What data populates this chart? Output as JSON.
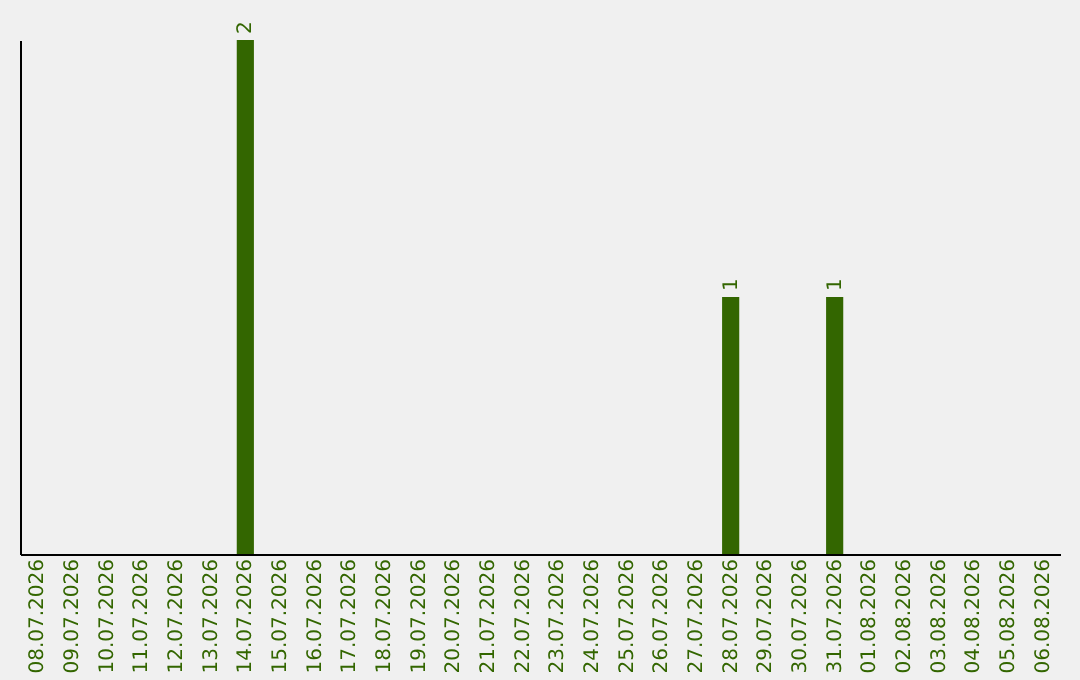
{
  "chart_data": {
    "type": "bar",
    "categories": [
      "08.07.2026",
      "09.07.2026",
      "10.07.2026",
      "11.07.2026",
      "12.07.2026",
      "13.07.2026",
      "14.07.2026",
      "15.07.2026",
      "16.07.2026",
      "17.07.2026",
      "18.07.2026",
      "19.07.2026",
      "20.07.2026",
      "21.07.2026",
      "22.07.2026",
      "23.07.2026",
      "24.07.2026",
      "25.07.2026",
      "26.07.2026",
      "27.07.2026",
      "28.07.2026",
      "29.07.2026",
      "30.07.2026",
      "31.07.2026",
      "01.08.2026",
      "02.08.2026",
      "03.08.2026",
      "04.08.2026",
      "05.08.2026",
      "06.08.2026"
    ],
    "values": [
      0,
      0,
      0,
      0,
      0,
      0,
      2,
      0,
      0,
      0,
      0,
      0,
      0,
      0,
      0,
      0,
      0,
      0,
      0,
      0,
      1,
      0,
      0,
      1,
      0,
      0,
      0,
      0,
      0,
      0
    ],
    "value_labels": [
      null,
      null,
      null,
      null,
      null,
      null,
      "2",
      null,
      null,
      null,
      null,
      null,
      null,
      null,
      null,
      null,
      null,
      null,
      null,
      null,
      "1",
      null,
      null,
      "1",
      null,
      null,
      null,
      null,
      null,
      null
    ],
    "color": "#336600",
    "grid": false,
    "tick_labels": "x"
  }
}
